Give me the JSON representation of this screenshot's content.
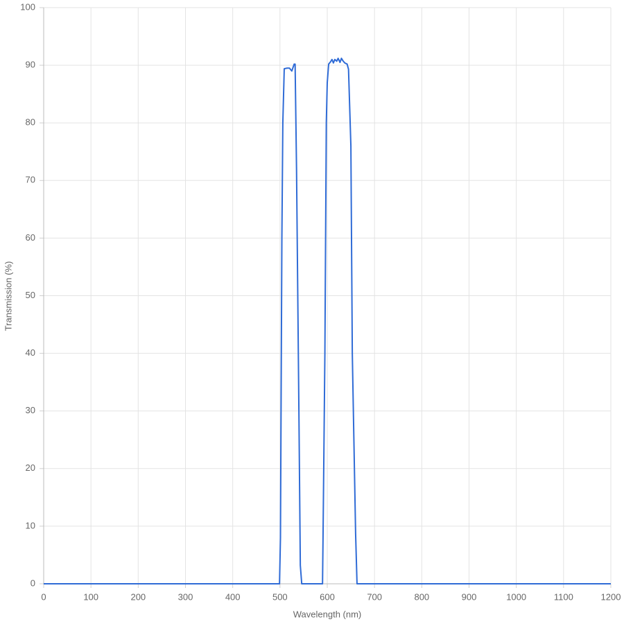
{
  "chart_data": {
    "type": "line",
    "x_label": "Wavelength (nm)",
    "y_label": "Transmission (%)",
    "x": [
      0,
      499,
      501,
      504,
      506,
      509,
      515,
      520,
      525,
      530,
      532,
      535,
      540,
      543,
      546,
      590,
      591,
      595,
      598,
      600,
      603,
      607,
      610,
      613,
      616,
      620,
      623,
      627,
      630,
      633,
      637,
      642,
      645,
      650,
      653,
      660,
      663,
      1200
    ],
    "values": [
      0,
      0,
      8,
      60,
      80,
      89.4,
      89.5,
      89.5,
      89,
      90.2,
      90.2,
      72,
      30,
      3.2,
      0,
      0,
      7.5,
      40,
      80,
      87,
      90.2,
      90.6,
      91,
      90.4,
      91,
      90.7,
      91.2,
      90.5,
      91.2,
      90.8,
      90.4,
      90.2,
      89.3,
      76,
      40,
      8.7,
      0,
      0
    ],
    "color": "#2f6bd6",
    "xlim": [
      0,
      1200
    ],
    "xticks": [
      0,
      100,
      200,
      300,
      400,
      500,
      600,
      700,
      800,
      900,
      1000,
      1100,
      1200
    ],
    "ylim": [
      0,
      100
    ],
    "yticks": [
      0,
      10,
      20,
      30,
      40,
      50,
      60,
      70,
      80,
      90,
      100
    ],
    "grid": true
  }
}
